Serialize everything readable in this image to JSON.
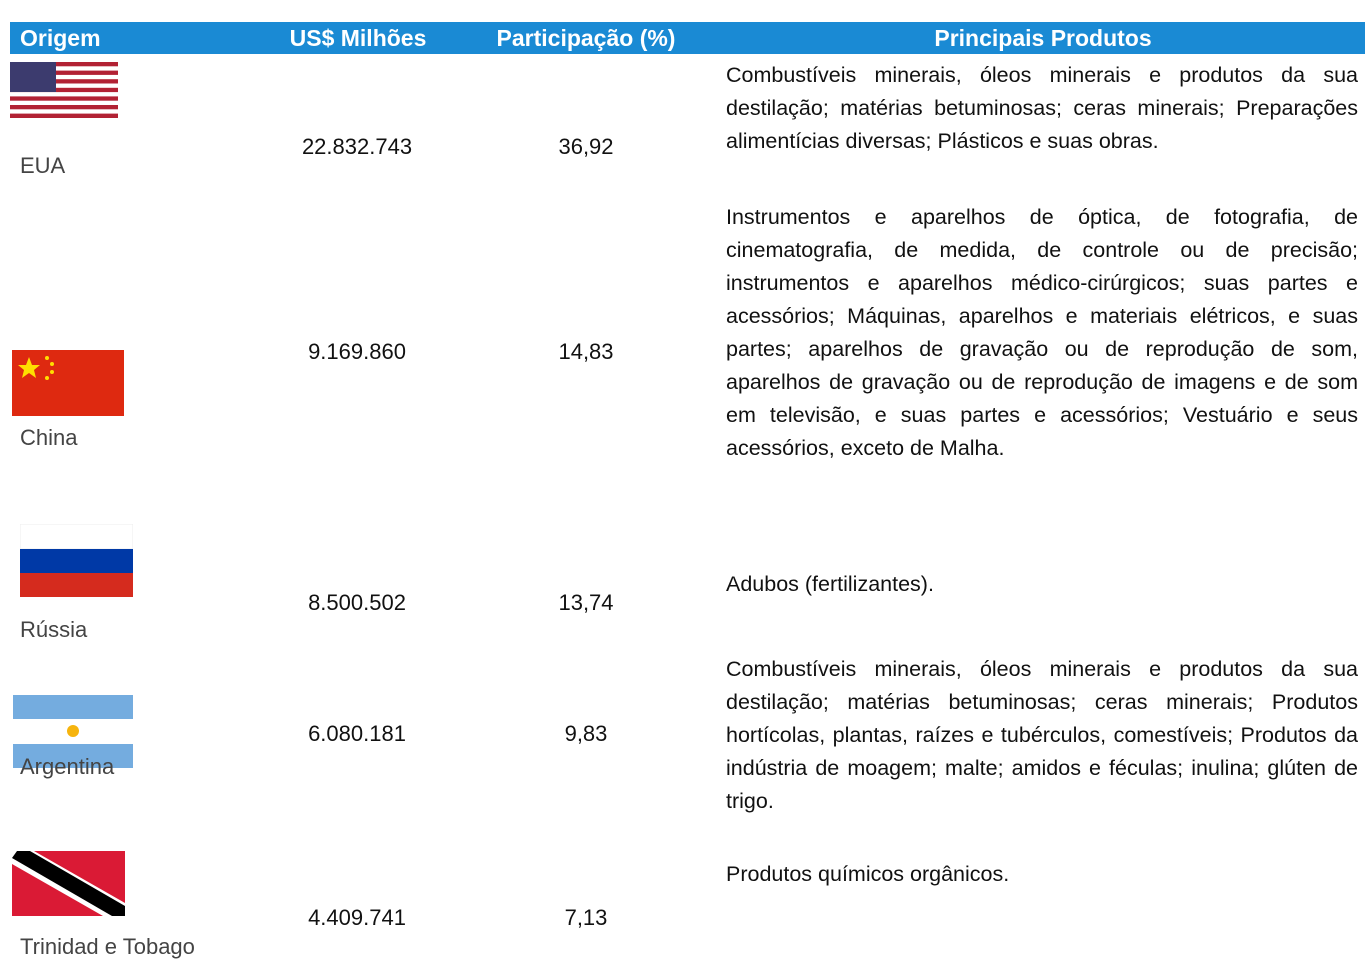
{
  "header": {
    "columns": [
      "Origem",
      "US$ Milhões",
      "Participação (%)",
      "Principais Produtos"
    ]
  },
  "rows": [
    {
      "origem": "EUA",
      "valor": "22.832.743",
      "participacao": "36,92",
      "produtos": "Combustíveis minerais, óleos minerais e produtos da sua destilação; matérias betuminosas; ceras minerais; Preparações alimentícias diversas; Plásticos e suas obras."
    },
    {
      "origem": "China",
      "valor": "9.169.860",
      "participacao": "14,83",
      "produtos": "Instrumentos e aparelhos de óptica, de fotografia, de cinematografia, de medida, de controle ou de precisão; instrumentos e aparelhos médico-cirúrgicos; suas partes e acessórios; Máquinas, aparelhos e materiais elétricos, e suas partes; aparelhos de gravação ou de reprodução de som, aparelhos de gravação ou de reprodução de imagens e de som em televisão, e suas partes e acessórios; Vestuário e seus acessórios, exceto de Malha."
    },
    {
      "origem": "Rússia",
      "valor": "8.500.502",
      "participacao": "13,74",
      "produtos": "Adubos (fertilizantes)."
    },
    {
      "origem": "Argentina",
      "valor": "6.080.181",
      "participacao": "9,83",
      "produtos": "Combustíveis minerais, óleos minerais e produtos da sua destilação; matérias betuminosas; ceras minerais; Produtos hortícolas, plantas, raízes e tubérculos, comestíveis; Produtos da indústria de moagem; malte; amidos e féculas; inulina; glúten de trigo."
    },
    {
      "origem": "Trinidad e Tobago",
      "valor": "4.409.741",
      "participacao": "7,13",
      "produtos": "Produtos químicos orgânicos."
    }
  ]
}
